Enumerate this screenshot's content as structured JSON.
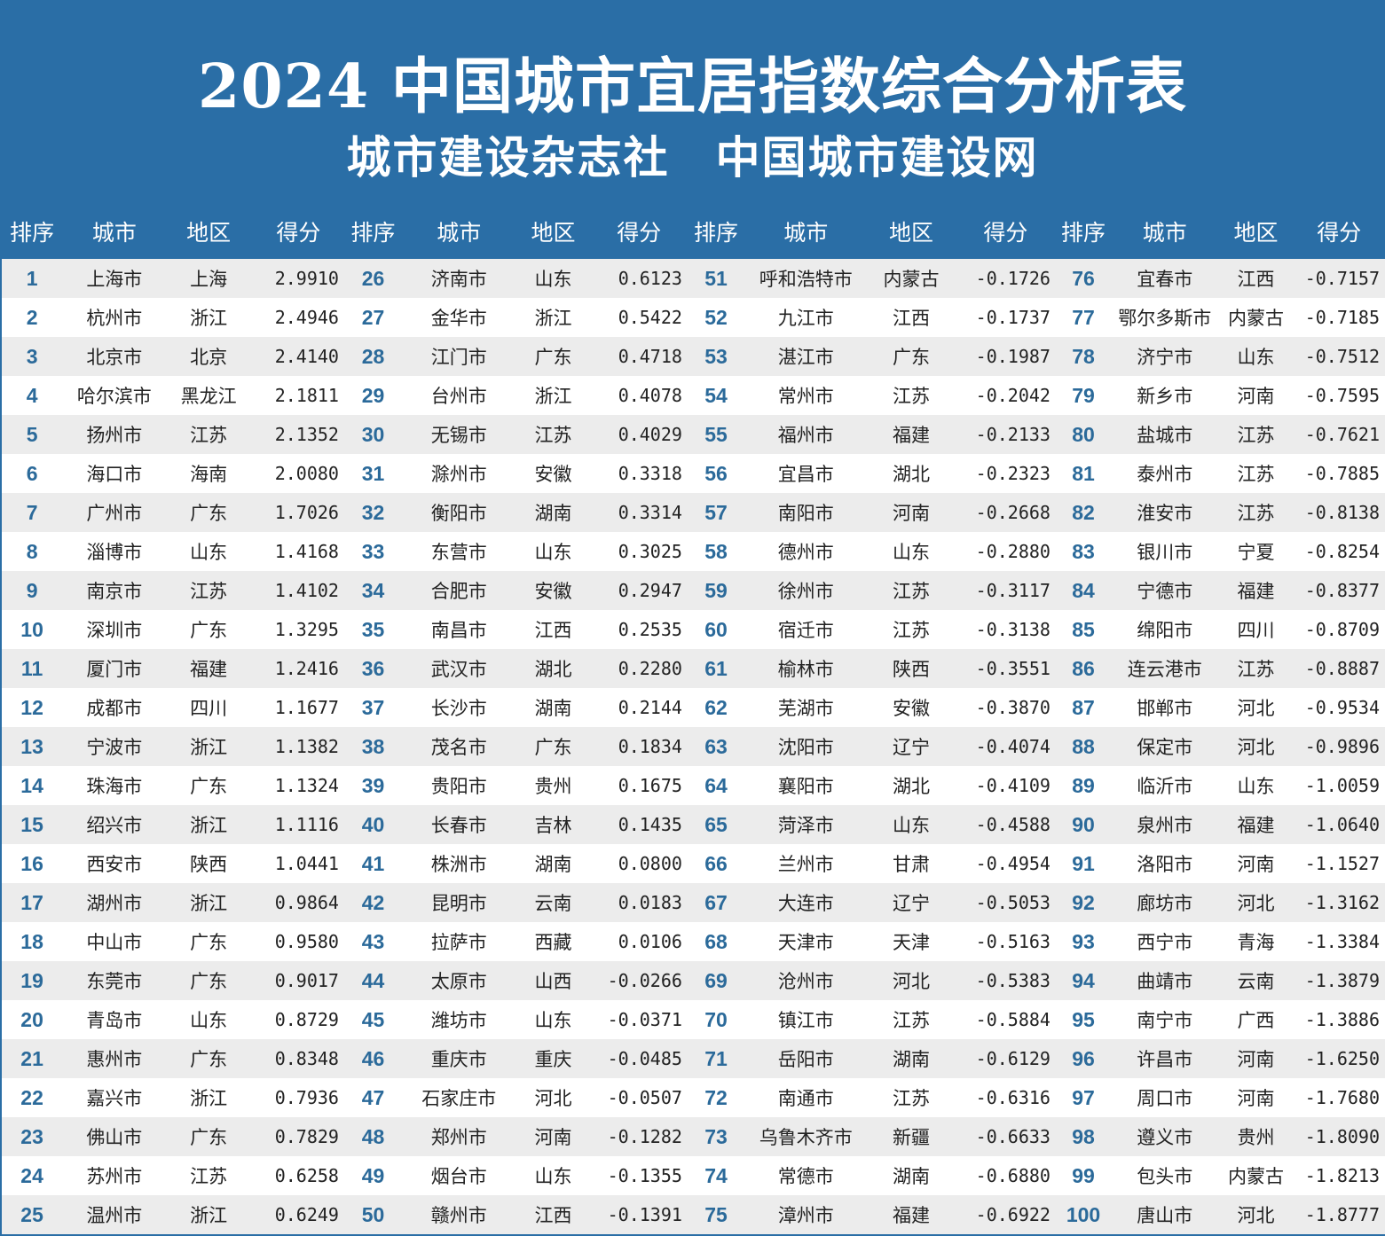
{
  "title": "2024 中国城市宜居指数综合分析表",
  "subtitle": "城市建设杂志社　中国城市建设网",
  "colors": {
    "header_bg": "#2a6ea6",
    "rank_text": "#2b6a9a",
    "stripe": "#ececec"
  },
  "columns": [
    "排序",
    "城市",
    "地区",
    "得分"
  ],
  "rows": [
    [
      "1",
      "上海市",
      "上海",
      "2.9910"
    ],
    [
      "2",
      "杭州市",
      "浙江",
      "2.4946"
    ],
    [
      "3",
      "北京市",
      "北京",
      "2.4140"
    ],
    [
      "4",
      "哈尔滨市",
      "黑龙江",
      "2.1811"
    ],
    [
      "5",
      "扬州市",
      "江苏",
      "2.1352"
    ],
    [
      "6",
      "海口市",
      "海南",
      "2.0080"
    ],
    [
      "7",
      "广州市",
      "广东",
      "1.7026"
    ],
    [
      "8",
      "淄博市",
      "山东",
      "1.4168"
    ],
    [
      "9",
      "南京市",
      "江苏",
      "1.4102"
    ],
    [
      "10",
      "深圳市",
      "广东",
      "1.3295"
    ],
    [
      "11",
      "厦门市",
      "福建",
      "1.2416"
    ],
    [
      "12",
      "成都市",
      "四川",
      "1.1677"
    ],
    [
      "13",
      "宁波市",
      "浙江",
      "1.1382"
    ],
    [
      "14",
      "珠海市",
      "广东",
      "1.1324"
    ],
    [
      "15",
      "绍兴市",
      "浙江",
      "1.1116"
    ],
    [
      "16",
      "西安市",
      "陕西",
      "1.0441"
    ],
    [
      "17",
      "湖州市",
      "浙江",
      "0.9864"
    ],
    [
      "18",
      "中山市",
      "广东",
      "0.9580"
    ],
    [
      "19",
      "东莞市",
      "广东",
      "0.9017"
    ],
    [
      "20",
      "青岛市",
      "山东",
      "0.8729"
    ],
    [
      "21",
      "惠州市",
      "广东",
      "0.8348"
    ],
    [
      "22",
      "嘉兴市",
      "浙江",
      "0.7936"
    ],
    [
      "23",
      "佛山市",
      "广东",
      "0.7829"
    ],
    [
      "24",
      "苏州市",
      "江苏",
      "0.6258"
    ],
    [
      "25",
      "温州市",
      "浙江",
      "0.6249"
    ],
    [
      "26",
      "济南市",
      "山东",
      "0.6123"
    ],
    [
      "27",
      "金华市",
      "浙江",
      "0.5422"
    ],
    [
      "28",
      "江门市",
      "广东",
      "0.4718"
    ],
    [
      "29",
      "台州市",
      "浙江",
      "0.4078"
    ],
    [
      "30",
      "无锡市",
      "江苏",
      "0.4029"
    ],
    [
      "31",
      "滁州市",
      "安徽",
      "0.3318"
    ],
    [
      "32",
      "衡阳市",
      "湖南",
      "0.3314"
    ],
    [
      "33",
      "东营市",
      "山东",
      "0.3025"
    ],
    [
      "34",
      "合肥市",
      "安徽",
      "0.2947"
    ],
    [
      "35",
      "南昌市",
      "江西",
      "0.2535"
    ],
    [
      "36",
      "武汉市",
      "湖北",
      "0.2280"
    ],
    [
      "37",
      "长沙市",
      "湖南",
      "0.2144"
    ],
    [
      "38",
      "茂名市",
      "广东",
      "0.1834"
    ],
    [
      "39",
      "贵阳市",
      "贵州",
      "0.1675"
    ],
    [
      "40",
      "长春市",
      "吉林",
      "0.1435"
    ],
    [
      "41",
      "株洲市",
      "湖南",
      "0.0800"
    ],
    [
      "42",
      "昆明市",
      "云南",
      "0.0183"
    ],
    [
      "43",
      "拉萨市",
      "西藏",
      "0.0106"
    ],
    [
      "44",
      "太原市",
      "山西",
      "-0.0266"
    ],
    [
      "45",
      "潍坊市",
      "山东",
      "-0.0371"
    ],
    [
      "46",
      "重庆市",
      "重庆",
      "-0.0485"
    ],
    [
      "47",
      "石家庄市",
      "河北",
      "-0.0507"
    ],
    [
      "48",
      "郑州市",
      "河南",
      "-0.1282"
    ],
    [
      "49",
      "烟台市",
      "山东",
      "-0.1355"
    ],
    [
      "50",
      "赣州市",
      "江西",
      "-0.1391"
    ],
    [
      "51",
      "呼和浩特市",
      "内蒙古",
      "-0.1726"
    ],
    [
      "52",
      "九江市",
      "江西",
      "-0.1737"
    ],
    [
      "53",
      "湛江市",
      "广东",
      "-0.1987"
    ],
    [
      "54",
      "常州市",
      "江苏",
      "-0.2042"
    ],
    [
      "55",
      "福州市",
      "福建",
      "-0.2133"
    ],
    [
      "56",
      "宜昌市",
      "湖北",
      "-0.2323"
    ],
    [
      "57",
      "南阳市",
      "河南",
      "-0.2668"
    ],
    [
      "58",
      "德州市",
      "山东",
      "-0.2880"
    ],
    [
      "59",
      "徐州市",
      "江苏",
      "-0.3117"
    ],
    [
      "60",
      "宿迁市",
      "江苏",
      "-0.3138"
    ],
    [
      "61",
      "榆林市",
      "陕西",
      "-0.3551"
    ],
    [
      "62",
      "芜湖市",
      "安徽",
      "-0.3870"
    ],
    [
      "63",
      "沈阳市",
      "辽宁",
      "-0.4074"
    ],
    [
      "64",
      "襄阳市",
      "湖北",
      "-0.4109"
    ],
    [
      "65",
      "菏泽市",
      "山东",
      "-0.4588"
    ],
    [
      "66",
      "兰州市",
      "甘肃",
      "-0.4954"
    ],
    [
      "67",
      "大连市",
      "辽宁",
      "-0.5053"
    ],
    [
      "68",
      "天津市",
      "天津",
      "-0.5163"
    ],
    [
      "69",
      "沧州市",
      "河北",
      "-0.5383"
    ],
    [
      "70",
      "镇江市",
      "江苏",
      "-0.5884"
    ],
    [
      "71",
      "岳阳市",
      "湖南",
      "-0.6129"
    ],
    [
      "72",
      "南通市",
      "江苏",
      "-0.6316"
    ],
    [
      "73",
      "乌鲁木齐市",
      "新疆",
      "-0.6633"
    ],
    [
      "74",
      "常德市",
      "湖南",
      "-0.6880"
    ],
    [
      "75",
      "漳州市",
      "福建",
      "-0.6922"
    ],
    [
      "76",
      "宜春市",
      "江西",
      "-0.7157"
    ],
    [
      "77",
      "鄂尔多斯市",
      "内蒙古",
      "-0.7185"
    ],
    [
      "78",
      "济宁市",
      "山东",
      "-0.7512"
    ],
    [
      "79",
      "新乡市",
      "河南",
      "-0.7595"
    ],
    [
      "80",
      "盐城市",
      "江苏",
      "-0.7621"
    ],
    [
      "81",
      "泰州市",
      "江苏",
      "-0.7885"
    ],
    [
      "82",
      "淮安市",
      "江苏",
      "-0.8138"
    ],
    [
      "83",
      "银川市",
      "宁夏",
      "-0.8254"
    ],
    [
      "84",
      "宁德市",
      "福建",
      "-0.8377"
    ],
    [
      "85",
      "绵阳市",
      "四川",
      "-0.8709"
    ],
    [
      "86",
      "连云港市",
      "江苏",
      "-0.8887"
    ],
    [
      "87",
      "邯郸市",
      "河北",
      "-0.9534"
    ],
    [
      "88",
      "保定市",
      "河北",
      "-0.9896"
    ],
    [
      "89",
      "临沂市",
      "山东",
      "-1.0059"
    ],
    [
      "90",
      "泉州市",
      "福建",
      "-1.0640"
    ],
    [
      "91",
      "洛阳市",
      "河南",
      "-1.1527"
    ],
    [
      "92",
      "廊坊市",
      "河北",
      "-1.3162"
    ],
    [
      "93",
      "西宁市",
      "青海",
      "-1.3384"
    ],
    [
      "94",
      "曲靖市",
      "云南",
      "-1.3879"
    ],
    [
      "95",
      "南宁市",
      "广西",
      "-1.3886"
    ],
    [
      "96",
      "许昌市",
      "河南",
      "-1.6250"
    ],
    [
      "97",
      "周口市",
      "河南",
      "-1.7680"
    ],
    [
      "98",
      "遵义市",
      "贵州",
      "-1.8090"
    ],
    [
      "99",
      "包头市",
      "内蒙古",
      "-1.8213"
    ],
    [
      "100",
      "唐山市",
      "河北",
      "-1.8777"
    ]
  ]
}
